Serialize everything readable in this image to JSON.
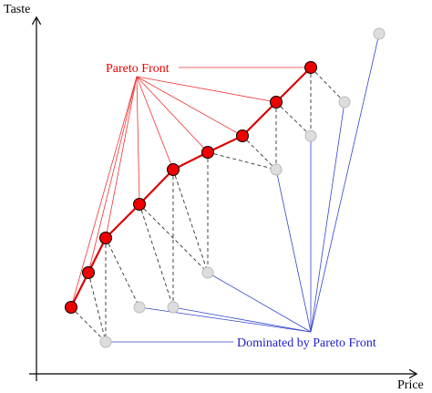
{
  "axes": {
    "y_label": "Taste",
    "x_label": "Price"
  },
  "annotations": {
    "pareto": "Pareto Front",
    "dominated": "Dominated by Pareto Front"
  }
}
